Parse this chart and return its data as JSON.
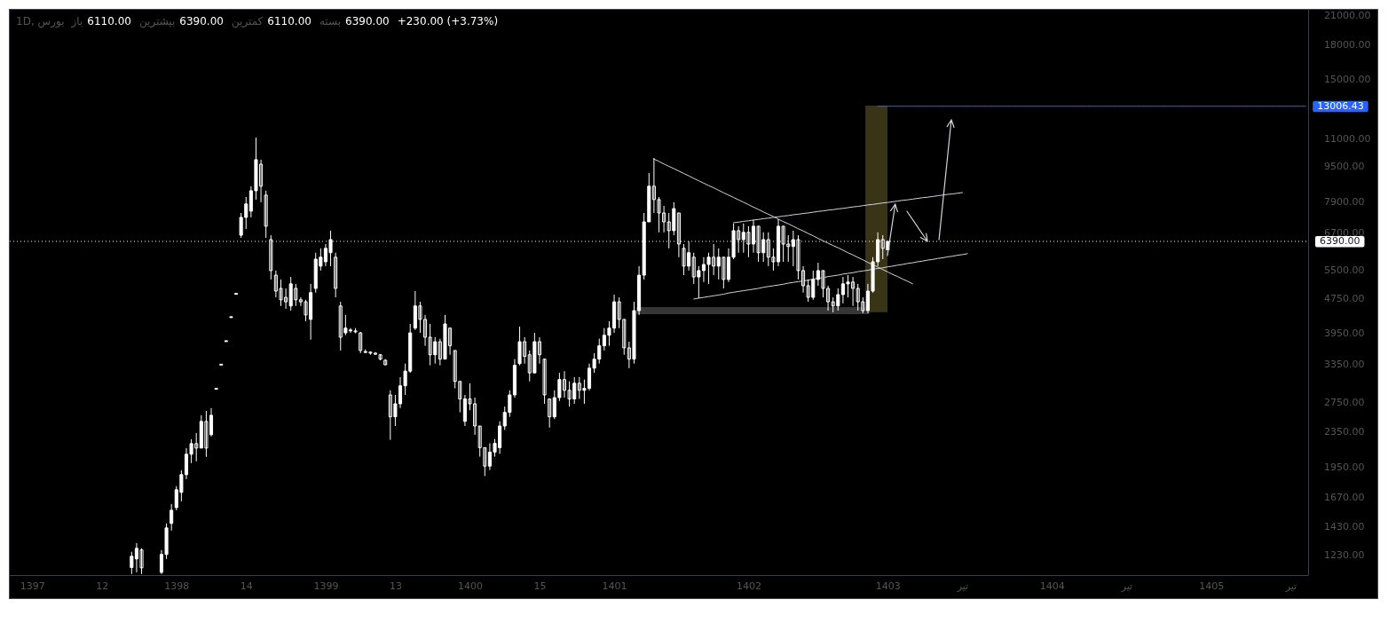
{
  "chart_data": {
    "type": "candlestick",
    "title": "1D, بورس",
    "annotations": [
      "باز",
      "6110.00",
      "بیشترین",
      "6390.00",
      "کمترین",
      "6110.00",
      "بسته",
      "6390.00",
      "+230.00 (+3.73%)"
    ],
    "color": "#ffffff",
    "log": true,
    "categories": [
      null,
      null,
      null,
      null,
      "1397",
      null,
      null,
      null,
      null,
      null,
      null,
      null,
      null,
      null,
      null,
      null,
      null,
      null,
      "12",
      null,
      null,
      null,
      null,
      null,
      null,
      null,
      null,
      null,
      null,
      null,
      null,
      null,
      null,
      "1398",
      null,
      null,
      null,
      null,
      null,
      null,
      null,
      null,
      null,
      null,
      null,
      null,
      null,
      "14",
      null,
      null,
      null,
      null,
      null,
      null,
      null,
      null,
      null,
      null,
      null,
      null,
      null,
      null,
      null,
      "1399",
      null,
      null,
      null,
      null,
      null,
      null,
      null,
      null,
      null,
      null,
      null,
      null,
      null,
      "13",
      null,
      null,
      null,
      null,
      null,
      null,
      null,
      null,
      null,
      null,
      null,
      null,
      null,
      null,
      "1400",
      null,
      null,
      null,
      null,
      null,
      null,
      null,
      null,
      null,
      null,
      null,
      null,
      null,
      "15",
      null,
      null,
      null,
      null,
      null,
      null,
      null,
      null,
      null,
      null,
      null,
      null,
      null,
      null,
      "1401",
      null,
      null,
      null,
      null,
      null,
      null,
      null,
      null,
      null,
      null,
      null,
      null,
      null,
      null,
      null,
      null,
      null,
      null,
      null,
      null,
      null,
      null,
      null,
      null,
      null,
      null,
      "1402",
      null,
      null,
      null,
      null,
      null,
      null,
      null,
      null,
      null,
      null,
      null,
      null,
      null,
      null,
      null,
      null,
      null,
      null,
      null,
      null,
      null,
      null,
      null,
      null,
      null,
      null,
      null,
      "1403",
      null,
      null,
      null,
      null,
      null,
      null,
      null,
      null,
      null,
      null,
      null,
      null,
      null,
      null,
      "تیر",
      null,
      null,
      null,
      null,
      null,
      null,
      null,
      null,
      null,
      null,
      null,
      null,
      null,
      null,
      null,
      null,
      null,
      "1404",
      null,
      null,
      null,
      null,
      null,
      null,
      null,
      null,
      null,
      null,
      null,
      null,
      null,
      null,
      "تیر",
      null,
      null,
      null,
      null,
      null,
      null,
      null,
      null,
      null,
      null,
      null,
      null,
      null,
      null,
      null,
      null,
      "1405",
      null,
      null,
      null,
      null,
      null,
      null,
      null,
      null,
      null,
      null,
      null,
      null,
      null,
      null,
      null,
      "تیر",
      null,
      null,
      null
    ],
    "ylim": [
      1105,
      21600
    ],
    "yticks": [
      {
        "value": 1230,
        "label": "1230.00"
      },
      {
        "value": 1430,
        "label": "1430.00"
      },
      {
        "value": 1670,
        "label": "1670.00"
      },
      {
        "value": 1950,
        "label": "1950.00"
      },
      {
        "value": 2350,
        "label": "2350.00"
      },
      {
        "value": 2750,
        "label": "2750.00"
      },
      {
        "value": 3350,
        "label": "3350.00"
      },
      {
        "value": 3950,
        "label": "3950.00"
      },
      {
        "value": 4750,
        "label": "4750.00"
      },
      {
        "value": 5500,
        "label": "5500.00"
      },
      {
        "value": 6700,
        "label": "6700.00"
      },
      {
        "value": 7900,
        "label": "7900.00"
      },
      {
        "value": 9500,
        "label": "9500.00"
      },
      {
        "value": 11000,
        "label": "11000.00"
      },
      {
        "value": 15000,
        "label": "15000.00"
      },
      {
        "value": 18000,
        "label": "18000.00"
      },
      {
        "value": 21000,
        "label": "21000.00"
      }
    ],
    "ohlc": [
      null,
      null,
      null,
      null,
      null,
      null,
      null,
      null,
      null,
      null,
      null,
      null,
      null,
      null,
      null,
      null,
      null,
      null,
      null,
      null,
      null,
      null,
      null,
      null,
      [
        1150,
        1249,
        1111,
        1220
      ],
      [
        1203,
        1308,
        1121,
        1272
      ],
      [
        1261,
        1272,
        1111,
        1148
      ],
      null,
      null,
      null,
      [
        1121,
        1261,
        1111,
        1232
      ],
      [
        1232,
        1450,
        1203,
        1416
      ],
      [
        1450,
        1606,
        1397,
        1554
      ],
      [
        1576,
        1764,
        1554,
        1731
      ],
      [
        1707,
        1918,
        1629,
        1874
      ],
      [
        1874,
        2155,
        1830,
        2086
      ],
      [
        2086,
        2258,
        1991,
        2206
      ],
      [
        2206,
        2333,
        2010,
        2155
      ],
      [
        2155,
        2561,
        2155,
        2479
      ],
      [
        2479,
        2620,
        2057,
        2155
      ],
      [
        2312,
        2659,
        2290,
        2561
      ],
      [
        2950,
        2950,
        2950,
        2950
      ],
      [
        3350,
        3350,
        3350,
        3350
      ],
      [
        3790,
        3790,
        3790,
        3790
      ],
      [
        4300,
        4300,
        4300,
        4300
      ],
      [
        4860,
        4860,
        4860,
        4860
      ],
      [
        6600,
        7420,
        6510,
        7250
      ],
      [
        7250,
        8070,
        6820,
        7780
      ],
      [
        7490,
        8540,
        7250,
        8340
      ],
      [
        8340,
        11030,
        7960,
        9820
      ],
      [
        9590,
        9820,
        7850,
        8540
      ],
      [
        8150,
        8340,
        6510,
        6920
      ],
      [
        6450,
        6600,
        5230,
        5480
      ],
      [
        5350,
        5480,
        4760,
        4920
      ],
      [
        4990,
        5230,
        4550,
        4700
      ],
      [
        4760,
        4990,
        4480,
        4650
      ],
      [
        4550,
        5300,
        4440,
        5110
      ],
      [
        4990,
        5110,
        4550,
        4700
      ],
      [
        4700,
        4760,
        4550,
        4650
      ],
      [
        4650,
        4700,
        4200,
        4340
      ],
      [
        4240,
        5110,
        3810,
        4880
      ],
      [
        4990,
        6020,
        4880,
        5820
      ],
      [
        5610,
        6160,
        5480,
        5880
      ],
      [
        5740,
        6300,
        5610,
        6160
      ],
      [
        6020,
        6760,
        5610,
        6450
      ],
      [
        5880,
        6020,
        4760,
        4990
      ],
      [
        4550,
        4650,
        3600,
        3860
      ],
      [
        3950,
        4340,
        3900,
        4050
      ],
      [
        4010,
        4050,
        3950,
        4010
      ],
      [
        3990,
        4050,
        3940,
        3970
      ],
      [
        3950,
        3970,
        3550,
        3600
      ],
      [
        3580,
        3620,
        3550,
        3580
      ],
      [
        3570,
        3580,
        3520,
        3550
      ],
      [
        3550,
        3570,
        3520,
        3530
      ],
      [
        3520,
        3530,
        3420,
        3440
      ],
      [
        3420,
        3440,
        3330,
        3340
      ],
      [
        2850,
        2920,
        2250,
        2540
      ],
      [
        2540,
        2850,
        2420,
        2720
      ],
      [
        2720,
        3130,
        2660,
        2990
      ],
      [
        2990,
        3360,
        2850,
        3230
      ],
      [
        3230,
        4140,
        3200,
        3950
      ],
      [
        4050,
        4920,
        4010,
        4550
      ],
      [
        4550,
        4650,
        3950,
        4240
      ],
      [
        4240,
        4340,
        3690,
        3860
      ],
      [
        3860,
        4140,
        3330,
        3520
      ],
      [
        3520,
        3860,
        3360,
        3770
      ],
      [
        3770,
        3830,
        3330,
        3440
      ],
      [
        3440,
        4340,
        3440,
        4140
      ],
      [
        4050,
        4050,
        3520,
        3690
      ],
      [
        3600,
        3600,
        2950,
        3060
      ],
      [
        3060,
        3060,
        2600,
        2790
      ],
      [
        2480,
        2850,
        2420,
        2790
      ],
      [
        2790,
        3030,
        2630,
        2720
      ],
      [
        2720,
        2810,
        2310,
        2420
      ],
      [
        2420,
        2420,
        2060,
        2160
      ],
      [
        2160,
        2160,
        1860,
        1960
      ],
      [
        1960,
        2210,
        1920,
        2110
      ],
      [
        2110,
        2260,
        2060,
        2210
      ],
      [
        2160,
        2480,
        2090,
        2420
      ],
      [
        2420,
        2680,
        2370,
        2600
      ],
      [
        2600,
        2920,
        2540,
        2850
      ],
      [
        2850,
        3440,
        2810,
        3330
      ],
      [
        3360,
        4080,
        3330,
        3770
      ],
      [
        3770,
        3860,
        3360,
        3490
      ],
      [
        3520,
        3600,
        3060,
        3200
      ],
      [
        3200,
        3950,
        3200,
        3770
      ],
      [
        3770,
        3860,
        3360,
        3520
      ],
      [
        3440,
        3440,
        2720,
        2850
      ],
      [
        2790,
        2790,
        2400,
        2540
      ],
      [
        2540,
        2920,
        2510,
        2810
      ],
      [
        2810,
        3200,
        2760,
        3090
      ],
      [
        3090,
        3230,
        2810,
        2920
      ],
      [
        2920,
        3060,
        2680,
        2790
      ],
      [
        2790,
        3130,
        2720,
        3030
      ],
      [
        3030,
        3130,
        2790,
        2920
      ],
      [
        2920,
        3090,
        2720,
        2950
      ],
      [
        2950,
        3360,
        2920,
        3280
      ],
      [
        3280,
        3550,
        3200,
        3440
      ],
      [
        3440,
        3830,
        3360,
        3690
      ],
      [
        3690,
        4050,
        3600,
        3900
      ],
      [
        3900,
        4200,
        3690,
        4050
      ],
      [
        4050,
        4830,
        3950,
        4650
      ],
      [
        4650,
        4760,
        4050,
        4240
      ],
      [
        4240,
        4240,
        3520,
        3650
      ],
      [
        3650,
        3770,
        3280,
        3440
      ],
      [
        3440,
        4650,
        3360,
        4440
      ],
      [
        4440,
        5610,
        4340,
        5350
      ],
      [
        5350,
        7420,
        5230,
        7080
      ],
      [
        7080,
        9150,
        7080,
        8540
      ],
      [
        8540,
        9910,
        7420,
        7960
      ],
      [
        7960,
        8070,
        6700,
        7420
      ],
      [
        7420,
        7700,
        6700,
        7080
      ],
      [
        7080,
        7420,
        6160,
        6760
      ],
      [
        6760,
        7850,
        6600,
        7590
      ],
      [
        7420,
        7420,
        5880,
        6300
      ],
      [
        6160,
        6300,
        5350,
        5610
      ],
      [
        5610,
        6390,
        5480,
        6020
      ],
      [
        5880,
        6020,
        5110,
        5300
      ],
      [
        5300,
        5610,
        4740,
        5480
      ],
      [
        5480,
        5880,
        5160,
        5660
      ],
      [
        5660,
        6020,
        5110,
        5880
      ],
      [
        5880,
        6300,
        5350,
        5610
      ],
      [
        5610,
        6160,
        5230,
        5880
      ],
      [
        5880,
        5880,
        4990,
        5230
      ],
      [
        5230,
        6160,
        5160,
        5880
      ],
      [
        5880,
        7020,
        5820,
        6760
      ],
      [
        6760,
        6920,
        6020,
        6450
      ],
      [
        6450,
        7020,
        6020,
        6700
      ],
      [
        6700,
        6920,
        5880,
        6300
      ],
      [
        6300,
        7150,
        6020,
        6920
      ],
      [
        6920,
        6920,
        5740,
        6020
      ],
      [
        6020,
        6700,
        5740,
        6450
      ],
      [
        6450,
        6700,
        5610,
        5880
      ],
      [
        5880,
        6160,
        5480,
        5740
      ],
      [
        5740,
        7180,
        5610,
        6920
      ],
      [
        6920,
        6920,
        5740,
        6300
      ],
      [
        6300,
        6600,
        5740,
        6220
      ],
      [
        6220,
        6760,
        5610,
        6450
      ],
      [
        6450,
        6600,
        5230,
        5480
      ],
      [
        5480,
        5610,
        4880,
        5060
      ],
      [
        5060,
        5230,
        4650,
        4760
      ],
      [
        4760,
        5480,
        4700,
        5230
      ],
      [
        5230,
        5710,
        5060,
        5480
      ],
      [
        5480,
        5480,
        4760,
        4990
      ],
      [
        4990,
        5060,
        4440,
        4650
      ],
      [
        4650,
        4760,
        4400,
        4550
      ],
      [
        4550,
        4990,
        4440,
        4830
      ],
      [
        4830,
        5300,
        4610,
        5110
      ],
      [
        5110,
        5350,
        4760,
        5160
      ],
      [
        5160,
        5300,
        4550,
        4990
      ],
      [
        4990,
        5110,
        4440,
        4650
      ],
      [
        4650,
        4760,
        4380,
        4440
      ],
      [
        4440,
        5110,
        4380,
        4920
      ],
      [
        4920,
        5880,
        4880,
        5740
      ],
      [
        5740,
        6700,
        5610,
        6450
      ],
      [
        6450,
        6600,
        5820,
        6160
      ],
      [
        6110,
        6390,
        6110,
        6390
      ],
      null,
      null,
      null,
      null,
      null,
      null,
      null,
      null,
      null,
      null,
      null,
      null,
      null,
      null,
      null,
      null,
      null,
      null,
      null,
      null,
      null,
      null,
      null,
      null,
      null,
      null,
      null,
      null,
      null,
      null,
      null,
      null,
      null,
      null,
      null,
      null,
      null,
      null,
      null,
      null,
      null,
      null,
      null,
      null,
      null,
      null,
      null,
      null,
      null,
      null,
      null,
      null,
      null,
      null,
      null,
      null,
      null,
      null,
      null,
      null,
      null,
      null,
      null,
      null,
      null,
      null,
      null,
      null,
      null,
      null,
      null,
      null,
      null,
      null,
      null,
      null,
      null,
      null,
      null,
      null,
      null,
      null,
      null,
      null
    ],
    "series": [
      {
        "type": "line",
        "color": "#d1d4dc",
        "values": [
          null,
          null,
          null,
          null,
          null,
          null,
          null,
          null,
          null,
          null,
          null,
          null,
          null,
          null,
          null,
          null,
          null,
          null,
          null,
          null,
          null,
          null,
          null,
          null,
          null,
          null,
          null,
          null,
          null,
          null,
          null,
          null,
          null,
          null,
          null,
          null,
          null,
          null,
          null,
          null,
          null,
          null,
          null,
          null,
          null,
          null,
          null,
          null,
          null,
          null,
          null,
          null,
          null,
          null,
          null,
          null,
          null,
          null,
          null,
          null,
          null,
          null,
          null,
          null,
          null,
          null,
          null,
          null,
          null,
          null,
          null,
          null,
          null,
          null,
          null,
          null,
          null,
          null,
          null,
          null,
          null,
          null,
          null,
          null,
          null,
          null,
          null,
          null,
          null,
          null,
          null,
          null,
          null,
          null,
          null,
          null,
          null,
          null,
          null,
          null,
          null,
          null,
          null,
          null,
          null,
          null,
          null,
          null,
          null,
          null,
          null,
          null,
          null,
          null,
          null,
          null,
          null,
          null,
          null,
          null,
          null,
          null,
          null,
          null,
          null,
          null,
          null,
          null,
          null,
          9850,
          9730,
          9600,
          9480,
          9370,
          9250,
          9130,
          9020,
          8900,
          8790,
          8680,
          8570,
          8470,
          8360,
          8250,
          8150,
          8050,
          7950,
          7850,
          7750,
          7650,
          7560,
          7460,
          7370,
          7280,
          7180,
          7090,
          7010,
          6920,
          6830,
          6750,
          6660,
          6580,
          6490,
          6410,
          6330,
          6250,
          6180,
          6100,
          6020,
          5950,
          5870,
          5800,
          5720,
          5650,
          5580,
          5510,
          5440,
          5370,
          5310,
          5240,
          5180,
          5110,
          null,
          null,
          null,
          null,
          null,
          null,
          null,
          null,
          null,
          null,
          null,
          null,
          null,
          null,
          null,
          null,
          null,
          null,
          null,
          null,
          null,
          null,
          null,
          null,
          null,
          null,
          null,
          null,
          null,
          null,
          null,
          null,
          null,
          null,
          null,
          null,
          null,
          null,
          null,
          null,
          null,
          null,
          null,
          null,
          null,
          null,
          null,
          null,
          null,
          null,
          null,
          null,
          null,
          null,
          null,
          null,
          null,
          null,
          null,
          null,
          null,
          null,
          null,
          null,
          null,
          null,
          null,
          null,
          null,
          null,
          null,
          null,
          null,
          null,
          null,
          null,
          null,
          null,
          null
        ]
      },
      {
        "type": "line",
        "color": "#d1d4dc",
        "values": [
          null,
          null,
          null,
          null,
          null,
          null,
          null,
          null,
          null,
          null,
          null,
          null,
          null,
          null,
          null,
          null,
          null,
          null,
          null,
          null,
          null,
          null,
          null,
          null,
          null,
          null,
          null,
          null,
          null,
          null,
          null,
          null,
          null,
          null,
          null,
          null,
          null,
          null,
          null,
          null,
          null,
          null,
          null,
          null,
          null,
          null,
          null,
          null,
          null,
          null,
          null,
          null,
          null,
          null,
          null,
          null,
          null,
          null,
          null,
          null,
          null,
          null,
          null,
          null,
          null,
          null,
          null,
          null,
          null,
          null,
          null,
          null,
          null,
          null,
          null,
          null,
          null,
          null,
          null,
          null,
          null,
          null,
          null,
          null,
          null,
          null,
          null,
          null,
          null,
          null,
          null,
          null,
          null,
          null,
          null,
          null,
          null,
          null,
          null,
          null,
          null,
          null,
          null,
          null,
          null,
          null,
          null,
          null,
          null,
          null,
          null,
          null,
          null,
          null,
          null,
          null,
          null,
          null,
          null,
          null,
          null,
          null,
          null,
          null,
          null,
          null,
          null,
          null,
          null,
          null,
          null,
          null,
          null,
          null,
          null,
          null,
          null,
          null,
          null,
          null,
          null,
          null,
          null,
          null,
          null,
          7050,
          7070,
          7100,
          7120,
          7150,
          7170,
          7200,
          7220,
          7250,
          7270,
          7300,
          7320,
          7350,
          7370,
          7400,
          7420,
          7450,
          7480,
          7500,
          7530,
          7550,
          7580,
          7600,
          7630,
          7660,
          7680,
          7710,
          7740,
          7760,
          7790,
          7820,
          7840,
          7870,
          7900,
          7930,
          7950,
          7980,
          8010,
          8040,
          8060,
          8090,
          8120,
          8150,
          8180,
          8200,
          8230,
          8260,
          null,
          null,
          null,
          null,
          null,
          null,
          null,
          null,
          null,
          null,
          null,
          null,
          null,
          null,
          null,
          null,
          null,
          null,
          null,
          null,
          null,
          null,
          null,
          null,
          null,
          null,
          null,
          null,
          null,
          null,
          null,
          null,
          null,
          null,
          null,
          null,
          null,
          null,
          null,
          null,
          null,
          null,
          null,
          null,
          null,
          null,
          null,
          null,
          null,
          null,
          null,
          null,
          null,
          null,
          null,
          null,
          null,
          null,
          null,
          null,
          null,
          null,
          null,
          null,
          null,
          null,
          null,
          null,
          null
        ]
      },
      {
        "type": "line",
        "color": "#d1d4dc",
        "values": [
          null,
          null,
          null,
          null,
          null,
          null,
          null,
          null,
          null,
          null,
          null,
          null,
          null,
          null,
          null,
          null,
          null,
          null,
          null,
          null,
          null,
          null,
          null,
          null,
          null,
          null,
          null,
          null,
          null,
          null,
          null,
          null,
          null,
          null,
          null,
          null,
          null,
          null,
          null,
          null,
          null,
          null,
          null,
          null,
          null,
          null,
          null,
          null,
          null,
          null,
          null,
          null,
          null,
          null,
          null,
          null,
          null,
          null,
          null,
          null,
          null,
          null,
          null,
          null,
          null,
          null,
          null,
          null,
          null,
          null,
          null,
          null,
          null,
          null,
          null,
          null,
          null,
          null,
          null,
          null,
          null,
          null,
          null,
          null,
          null,
          null,
          null,
          null,
          null,
          null,
          null,
          null,
          null,
          null,
          null,
          null,
          null,
          null,
          null,
          null,
          null,
          null,
          null,
          null,
          null,
          null,
          null,
          null,
          null,
          null,
          null,
          null,
          null,
          null,
          null,
          null,
          null,
          null,
          null,
          null,
          null,
          null,
          null,
          null,
          null,
          null,
          null,
          null,
          null,
          null,
          null,
          null,
          null,
          null,
          null,
          null,
          null,
          4720,
          4740,
          4760,
          4780,
          4800,
          4820,
          4840,
          4870,
          4890,
          4910,
          4930,
          4950,
          4970,
          4990,
          5020,
          5040,
          5060,
          5080,
          5100,
          5130,
          5150,
          5170,
          5190,
          5210,
          5240,
          5260,
          5280,
          5310,
          5330,
          5350,
          5380,
          5400,
          5420,
          5450,
          5470,
          5490,
          5520,
          5540,
          5560,
          5590,
          5610,
          5640,
          5660,
          5690,
          5710,
          5740,
          5760,
          5790,
          5810,
          5840,
          5860,
          5890,
          5910,
          5940,
          5960,
          5990,
          null,
          null,
          null,
          null,
          null,
          null,
          null,
          null,
          null,
          null,
          null,
          null,
          null,
          null,
          null,
          null,
          null,
          null,
          null,
          null,
          null,
          null,
          null,
          null,
          null,
          null,
          null,
          null,
          null,
          null,
          null,
          null,
          null,
          null,
          null,
          null,
          null,
          null,
          null,
          null,
          null,
          null,
          null,
          null,
          null,
          null,
          null,
          null,
          null,
          null,
          null,
          null,
          null,
          null,
          null,
          null,
          null,
          null,
          null,
          null,
          null,
          null,
          null,
          null,
          null,
          null,
          null,
          null
        ]
      },
      {
        "type": "line",
        "color": "#2962ff",
        "values": [
          null,
          null,
          null,
          null,
          null,
          null,
          null,
          null,
          null,
          null,
          null,
          null,
          null,
          null,
          null,
          null,
          null,
          null,
          null,
          null,
          null,
          null,
          null,
          null,
          null,
          null,
          null,
          null,
          null,
          null,
          null,
          null,
          null,
          null,
          null,
          null,
          null,
          null,
          null,
          null,
          null,
          null,
          null,
          null,
          null,
          null,
          null,
          null,
          null,
          null,
          null,
          null,
          null,
          null,
          null,
          null,
          null,
          null,
          null,
          null,
          null,
          null,
          null,
          null,
          null,
          null,
          null,
          null,
          null,
          null,
          null,
          null,
          null,
          null,
          null,
          null,
          null,
          null,
          null,
          null,
          null,
          null,
          null,
          null,
          null,
          null,
          null,
          null,
          null,
          null,
          null,
          null,
          null,
          null,
          null,
          null,
          null,
          null,
          null,
          null,
          null,
          null,
          null,
          null,
          null,
          null,
          null,
          null,
          null,
          null,
          null,
          null,
          null,
          null,
          null,
          null,
          null,
          null,
          null,
          null,
          null,
          null,
          null,
          null,
          null,
          null,
          null,
          null,
          null,
          null,
          null,
          null,
          null,
          null,
          null,
          null,
          null,
          null,
          null,
          null,
          null,
          null,
          null,
          null,
          null,
          null,
          null,
          null,
          null,
          null,
          null,
          null,
          null,
          null,
          null,
          null,
          null,
          null,
          null,
          null,
          null,
          null,
          null,
          null,
          null,
          null,
          null,
          null,
          null,
          null,
          null,
          null,
          null,
          null,
          13006.43,
          13006.43,
          13006.43,
          13006.43,
          13006.43,
          13006.43,
          13006.43,
          13006.43,
          13006.43,
          13006.43,
          13006.43,
          13006.43,
          13006.43,
          13006.43,
          13006.43,
          13006.43,
          13006.43,
          13006.43,
          13006.43,
          13006.43,
          13006.43,
          13006.43,
          13006.43,
          13006.43,
          13006.43,
          13006.43,
          13006.43,
          13006.43,
          13006.43,
          13006.43,
          13006.43,
          13006.43,
          13006.43,
          13006.43,
          13006.43,
          13006.43,
          13006.43,
          13006.43,
          13006.43,
          13006.43,
          13006.43,
          13006.43,
          13006.43,
          13006.43,
          13006.43,
          13006.43,
          13006.43,
          13006.43,
          13006.43,
          13006.43,
          13006.43,
          13006.43,
          13006.43,
          13006.43,
          13006.43,
          13006.43,
          13006.43,
          13006.43,
          13006.43,
          13006.43,
          13006.43,
          13006.43,
          13006.43,
          13006.43,
          13006.43,
          13006.43,
          13006.43,
          13006.43,
          13006.43,
          13006.43,
          13006.43,
          13006.43,
          13006.43,
          13006.43,
          13006.43,
          13006.43,
          13006.43,
          13006.43,
          13006.43,
          13006.43,
          13006.43,
          13006.43,
          13006.43,
          13006.43,
          13006.43,
          13006.43,
          13006.43
        ],
        "value_labels": [
          null,
          null,
          null,
          null,
          null,
          null,
          null,
          null,
          null,
          null,
          null,
          null,
          null,
          null,
          null,
          null,
          null,
          null,
          null,
          null,
          null,
          null,
          null,
          null,
          null,
          null,
          null,
          null,
          null,
          null,
          null,
          null,
          null,
          null,
          null,
          null,
          null,
          null,
          null,
          null,
          null,
          null,
          null,
          null,
          null,
          null,
          null,
          null,
          null,
          null,
          null,
          null,
          null,
          null,
          null,
          null,
          null,
          null,
          null,
          null,
          null,
          null,
          null,
          null,
          null,
          null,
          null,
          null,
          null,
          null,
          null,
          null,
          null,
          null,
          null,
          null,
          null,
          null,
          null,
          null,
          null,
          null,
          null,
          null,
          null,
          null,
          null,
          null,
          null,
          null,
          null,
          null,
          null,
          null,
          null,
          null,
          null,
          null,
          null,
          null,
          null,
          null,
          null,
          null,
          null,
          null,
          null,
          null,
          null,
          null,
          null,
          null,
          null,
          null,
          null,
          null,
          null,
          null,
          null,
          null,
          null,
          null,
          null,
          null,
          null,
          null,
          null,
          null,
          null,
          null,
          null,
          null,
          null,
          null,
          null,
          null,
          null,
          null,
          null,
          null,
          null,
          null,
          null,
          null,
          null,
          null,
          null,
          null,
          null,
          null,
          null,
          null,
          null,
          null,
          null,
          null,
          null,
          null,
          null,
          null,
          null,
          null,
          null,
          null,
          null,
          null,
          null,
          null,
          null,
          null,
          null,
          null,
          null,
          null,
          null,
          null,
          null,
          null,
          null,
          null,
          null,
          null,
          null,
          null,
          null,
          null,
          null,
          null,
          null,
          null,
          null,
          null,
          null,
          null,
          null,
          null,
          null,
          null,
          null,
          null,
          null,
          null,
          null,
          null,
          null,
          null,
          null,
          null,
          null,
          null,
          null,
          null,
          null,
          null,
          null,
          null,
          null,
          null,
          null,
          null,
          null,
          null,
          null,
          null,
          null,
          null,
          null,
          null,
          null,
          null,
          null,
          null,
          null,
          null,
          null,
          null,
          null,
          null,
          null,
          null,
          null,
          null,
          null,
          null,
          null,
          null,
          null,
          null,
          null,
          null,
          null,
          null,
          null,
          null,
          null,
          null,
          null,
          null,
          null,
          null,
          "13006.43"
        ]
      }
    ],
    "ref_lines": [
      {
        "axis": "y",
        "value": 6390,
        "label": "6390.00",
        "color": "#ffffff",
        "line_style": "dotted"
      }
    ]
  }
}
